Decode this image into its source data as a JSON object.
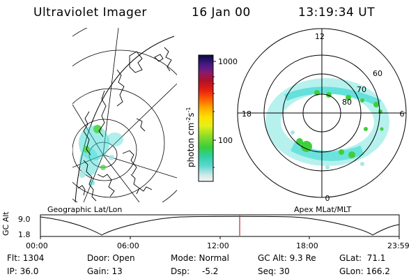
{
  "header": {
    "instrument": "Ultraviolet Imager",
    "date": "16 Jan 00",
    "time": "13:19:34 UT"
  },
  "colorbar": {
    "label": "photon cm",
    "label_exp1": "-2",
    "label_s": "s",
    "label_exp2": "-1",
    "ticks": [
      {
        "value": 1000,
        "label": "1000"
      },
      {
        "value": 100,
        "label": "100"
      }
    ]
  },
  "left_panel": {
    "caption": "Geographic Lat/Lon"
  },
  "right_panel": {
    "caption": "Apex MLat/MLT",
    "mlt_labels": {
      "top": "12",
      "left": "18",
      "right": "6",
      "bottom": "0"
    },
    "mlat_labels": [
      "60",
      "70",
      "80"
    ]
  },
  "altitude_plot": {
    "ylabel": "GC Alt",
    "yticks": [
      "9.0",
      "1.8"
    ],
    "xticks": [
      "00:00",
      "06:00",
      "12:00",
      "18:00",
      "23:59"
    ],
    "current_time_hours": 13.33
  },
  "status": {
    "flt": "Flt: 1304",
    "ip": "IP: 36.0",
    "door": "Door: Open",
    "gain": "Gain: 13",
    "mode": "Mode: Normal",
    "dsp": "Dsp:",
    "dsp_value": "-5.2",
    "gc_alt": "GC Alt: 9.3 Re",
    "seq": "Seq: 30",
    "glat": "GLat:  71.1",
    "glon": "GLon: 166.2"
  },
  "colors": {
    "cyan": "#2fd6cf",
    "green": "#3ecf3a",
    "time_marker": "#cc2222"
  }
}
